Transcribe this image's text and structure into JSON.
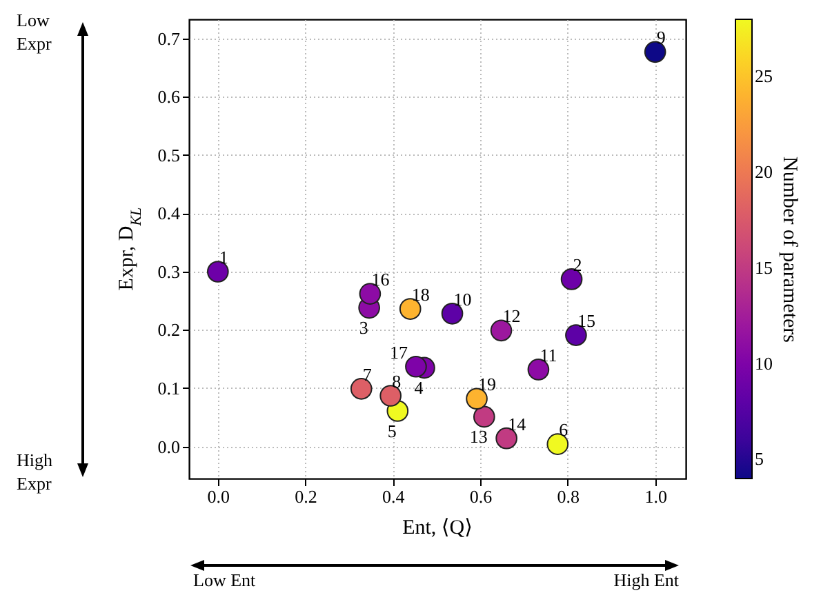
{
  "chart_data": {
    "type": "scatter",
    "xlabel": "Ent, ⟨Q⟩",
    "ylabel": "Expr, D$_{KL}$",
    "clabel": "Number of parameters",
    "x": [
      0.0,
      0.809,
      0.346,
      0.472,
      0.411,
      0.777,
      0.328,
      0.395,
      1.0,
      0.536,
      0.733,
      0.648,
      0.609,
      0.66,
      0.819,
      0.348,
      0.453,
      0.44,
      0.592
    ],
    "values": [
      0.3,
      0.287,
      0.238,
      0.135,
      0.061,
      0.004,
      0.099,
      0.087,
      0.677,
      0.228,
      0.132,
      0.199,
      0.051,
      0.014,
      0.191,
      0.262,
      0.137,
      0.236,
      0.082
    ],
    "cvalues": [
      9,
      9,
      11,
      10,
      28,
      28,
      18,
      18,
      4,
      8,
      11,
      12,
      15,
      15,
      8,
      11,
      10,
      24,
      24
    ],
    "clim": [
      4,
      28
    ],
    "cticks": [
      5,
      10,
      15,
      20,
      25
    ],
    "xlim": [
      -0.066,
      1.07
    ],
    "xticks": [
      {
        "value": 0,
        "label": "0.0"
      },
      0.2,
      0.4,
      0.6,
      0.8,
      {
        "value": 1,
        "label": "1.0"
      }
    ],
    "ylim": [
      -0.055,
      0.733
    ],
    "yticks": [
      {
        "value": 0,
        "label": "0.0"
      },
      0.1,
      0.2,
      0.3,
      0.4,
      0.5,
      0.6,
      0.7
    ],
    "grid": true,
    "marker": "circle",
    "annotations": [
      "Low Expr",
      "High Expr",
      "Low Ent",
      "High Ent",
      {
        "text": "1",
        "x": 0.0,
        "y": 0.3
      },
      {
        "text": "2",
        "x": 0.809,
        "y": 0.287
      },
      {
        "text": "3",
        "x": 0.346,
        "y": 0.238
      },
      {
        "text": "4",
        "x": 0.472,
        "y": 0.135
      },
      {
        "text": "5",
        "x": 0.411,
        "y": 0.061
      },
      {
        "text": "6",
        "x": 0.777,
        "y": 0.004
      },
      {
        "text": "7",
        "x": 0.328,
        "y": 0.099
      },
      {
        "text": "8",
        "x": 0.395,
        "y": 0.087
      },
      {
        "text": "9",
        "x": 1.0,
        "y": 0.677
      },
      {
        "text": "10",
        "x": 0.536,
        "y": 0.228
      },
      {
        "text": "11",
        "x": 0.733,
        "y": 0.132
      },
      {
        "text": "12",
        "x": 0.648,
        "y": 0.199
      },
      {
        "text": "13",
        "x": 0.609,
        "y": 0.051
      },
      {
        "text": "14",
        "x": 0.66,
        "y": 0.014
      },
      {
        "text": "15",
        "x": 0.819,
        "y": 0.191
      },
      {
        "text": "16",
        "x": 0.348,
        "y": 0.262
      },
      {
        "text": "17",
        "x": 0.453,
        "y": 0.137
      },
      {
        "text": "18",
        "x": 0.44,
        "y": 0.236
      },
      {
        "text": "19",
        "x": 0.592,
        "y": 0.082
      }
    ]
  }
}
